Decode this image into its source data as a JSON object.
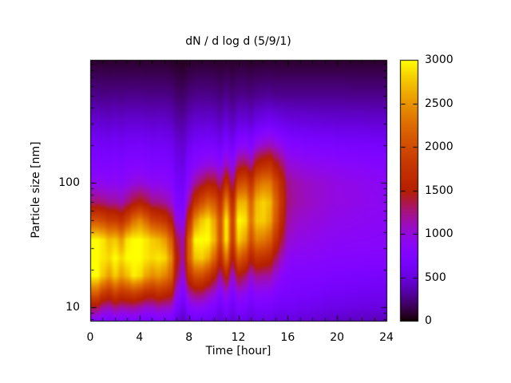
{
  "title": "dN / d log d (5/9/1)",
  "colors": {
    "background": "#ffffff",
    "text": "#000000",
    "border": "#000000"
  },
  "axes": {
    "x": {
      "label": "Time [hour]",
      "min": 0,
      "max": 24,
      "major_ticks": [
        0,
        4,
        8,
        12,
        16,
        20,
        24
      ],
      "minor_tick_step": 1
    },
    "y": {
      "label": "Particle size [nm]",
      "scale": "log",
      "min": 7.8,
      "max": 970,
      "major_ticks": [
        10,
        100
      ],
      "minor_ticks": [
        8,
        9,
        20,
        30,
        40,
        50,
        60,
        70,
        80,
        90,
        200,
        300,
        400,
        500,
        600,
        700,
        800,
        900
      ]
    },
    "z": {
      "min": 0,
      "max": 3000,
      "ticks": [
        0,
        500,
        1000,
        1500,
        2000,
        2500,
        3000
      ],
      "palette_name": "gnuplot pm3d (rgbformulae 7,5,15)",
      "palette_stops": [
        "#000000",
        "#5a00b4",
        "#8004ff",
        "#9c0db4",
        "#b42000",
        "#ca3e00",
        "#dd6c00",
        "#efab00",
        "#ffff00"
      ]
    }
  },
  "chart_data": {
    "type": "heatmap",
    "title": "dN / d log d (5/9/1)",
    "xlabel": "Time [hour]",
    "ylabel": "Particle size [nm]",
    "zlim": [
      0,
      3000
    ],
    "xlim": [
      0,
      24
    ],
    "ylim_nm": [
      7.8,
      970
    ],
    "colorbar_position": "right",
    "grid": false,
    "x_hours": [
      0,
      0.5,
      1,
      1.5,
      2,
      2.5,
      3,
      3.5,
      4,
      4.5,
      5,
      5.5,
      6,
      6.5,
      7,
      7.5,
      8,
      8.5,
      9,
      9.5,
      10,
      10.5,
      11,
      11.5,
      12,
      12.5,
      13,
      13.5,
      14,
      14.5,
      15,
      15.5,
      16,
      16.5,
      17,
      17.5,
      18,
      18.5,
      19,
      19.5,
      20,
      20.5,
      21,
      21.5,
      22,
      22.5,
      23,
      23.5,
      24
    ],
    "y_sizes_nm": [
      8,
      10,
      13,
      18,
      25,
      35,
      50,
      70,
      100,
      140,
      200,
      300,
      500,
      950
    ],
    "values": [
      [
        850,
        850,
        760,
        720,
        800,
        740,
        760,
        770,
        730,
        690,
        690,
        740,
        720,
        700,
        500,
        410,
        580,
        620,
        620,
        590,
        550,
        470,
        560,
        460,
        560,
        540,
        480,
        540,
        530,
        540,
        500,
        490,
        510,
        510,
        480,
        480,
        470,
        460,
        450,
        440,
        430,
        430,
        420,
        420,
        410,
        410,
        400,
        400,
        400
      ],
      [
        1360,
        1360,
        1170,
        1110,
        1240,
        1150,
        1180,
        1190,
        1130,
        1050,
        1050,
        1130,
        1080,
        1060,
        720,
        550,
        820,
        890,
        880,
        810,
        740,
        610,
        750,
        590,
        740,
        700,
        610,
        700,
        680,
        690,
        630,
        610,
        620,
        620,
        590,
        590,
        580,
        570,
        560,
        550,
        540,
        540,
        530,
        530,
        520,
        520,
        510,
        510,
        510
      ],
      [
        2140,
        2140,
        1830,
        1700,
        1900,
        1750,
        1810,
        1890,
        1800,
        1650,
        1610,
        1720,
        1640,
        1550,
        990,
        730,
        1170,
        1300,
        1290,
        1150,
        1020,
        810,
        1010,
        750,
        980,
        910,
        770,
        880,
        850,
        860,
        760,
        710,
        700,
        690,
        680,
        680,
        670,
        660,
        640,
        630,
        620,
        620,
        610,
        610,
        600,
        600,
        590,
        590,
        590
      ],
      [
        3000,
        3000,
        2760,
        2550,
        2780,
        2560,
        2720,
        2940,
        2860,
        2600,
        2460,
        2540,
        2410,
        2180,
        1330,
        990,
        1720,
        2020,
        2010,
        1810,
        1550,
        1180,
        1550,
        1050,
        1460,
        1320,
        1070,
        1230,
        1180,
        1170,
        990,
        860,
        790,
        770,
        760,
        760,
        750,
        750,
        740,
        730,
        720,
        720,
        710,
        700,
        700,
        690,
        680,
        680,
        680
      ],
      [
        3000,
        3000,
        2910,
        2850,
        3000,
        2850,
        3000,
        3000,
        3000,
        2910,
        2850,
        2910,
        2850,
        2480,
        1500,
        1180,
        2170,
        2750,
        2800,
        2620,
        2230,
        1670,
        2290,
        1490,
        2140,
        1950,
        1550,
        1780,
        1710,
        1640,
        1340,
        1090,
        910,
        870,
        860,
        860,
        840,
        840,
        830,
        820,
        810,
        810,
        810,
        810,
        800,
        800,
        800,
        800,
        800
      ],
      [
        3000,
        3000,
        2910,
        2720,
        2780,
        2560,
        2910,
        3000,
        3000,
        2910,
        2790,
        2710,
        2570,
        2190,
        1340,
        1140,
        2200,
        2990,
        3000,
        3000,
        2710,
        2060,
        2890,
        1870,
        2780,
        2590,
        2060,
        2390,
        2340,
        2190,
        1760,
        1380,
        1050,
        1000,
        960,
        950,
        930,
        920,
        900,
        890,
        880,
        870,
        870,
        860,
        860,
        860,
        850,
        850,
        850
      ],
      [
        2070,
        2070,
        1980,
        1850,
        1840,
        1710,
        1970,
        2290,
        2430,
        2220,
        1940,
        1870,
        1780,
        1520,
        990,
        900,
        1740,
        2490,
        2760,
        2910,
        2620,
        2060,
        2920,
        1930,
        2990,
        2900,
        2340,
        2780,
        2800,
        2630,
        2110,
        1640,
        1170,
        1090,
        1050,
        1030,
        1000,
        990,
        970,
        950,
        930,
        920,
        920,
        910,
        900,
        890,
        890,
        880,
        880
      ],
      [
        1280,
        1280,
        1260,
        1190,
        1190,
        1120,
        1270,
        1420,
        1510,
        1410,
        1250,
        1230,
        1180,
        1050,
        750,
        710,
        1240,
        1760,
        2010,
        2220,
        2100,
        1730,
        2420,
        1670,
        2660,
        2680,
        2210,
        2720,
        2820,
        2710,
        2210,
        1750,
        1250,
        1170,
        1130,
        1100,
        1070,
        1040,
        1020,
        1000,
        980,
        970,
        960,
        950,
        940,
        920,
        920,
        910,
        910
      ],
      [
        930,
        930,
        910,
        880,
        910,
        860,
        930,
        980,
        1010,
        970,
        900,
        910,
        880,
        830,
        650,
        620,
        920,
        1190,
        1340,
        1480,
        1460,
        1250,
        1700,
        1260,
        1970,
        2050,
        1750,
        2230,
        2360,
        2350,
        1980,
        1640,
        1220,
        1160,
        1120,
        1080,
        1060,
        1040,
        1020,
        1000,
        970,
        960,
        950,
        940,
        930,
        910,
        900,
        890,
        890
      ],
      [
        770,
        770,
        750,
        740,
        770,
        730,
        780,
        790,
        790,
        770,
        740,
        750,
        740,
        710,
        570,
        540,
        730,
        860,
        920,
        990,
        980,
        870,
        1120,
        890,
        1320,
        1380,
        1210,
        1580,
        1690,
        1740,
        1510,
        1310,
        1040,
        1000,
        970,
        940,
        920,
        910,
        900,
        890,
        870,
        860,
        840,
        840,
        830,
        820,
        810,
        800,
        800
      ],
      [
        650,
        650,
        630,
        620,
        650,
        620,
        650,
        650,
        660,
        640,
        620,
        630,
        620,
        600,
        490,
        460,
        590,
        670,
        690,
        710,
        690,
        620,
        750,
        620,
        840,
        880,
        780,
        1000,
        1070,
        1130,
        1020,
        930,
        810,
        780,
        770,
        750,
        740,
        730,
        720,
        720,
        700,
        700,
        690,
        690,
        680,
        680,
        670,
        670,
        670
      ],
      [
        480,
        480,
        470,
        460,
        480,
        460,
        480,
        480,
        480,
        470,
        460,
        470,
        460,
        440,
        360,
        340,
        430,
        480,
        480,
        490,
        470,
        420,
        500,
        420,
        520,
        530,
        480,
        580,
        600,
        640,
        600,
        570,
        540,
        530,
        520,
        520,
        510,
        510,
        500,
        500,
        490,
        490,
        490,
        490,
        490,
        480,
        480,
        480,
        480
      ],
      [
        280,
        280,
        270,
        270,
        280,
        270,
        280,
        280,
        280,
        270,
        270,
        270,
        270,
        260,
        210,
        200,
        250,
        280,
        280,
        280,
        270,
        240,
        280,
        240,
        280,
        280,
        260,
        290,
        300,
        310,
        290,
        290,
        290,
        290,
        290,
        290,
        290,
        290,
        290,
        290,
        290,
        290,
        280,
        280,
        280,
        280,
        280,
        280,
        280
      ],
      [
        90,
        90,
        90,
        90,
        90,
        90,
        90,
        90,
        90,
        90,
        90,
        90,
        90,
        80,
        70,
        60,
        80,
        90,
        90,
        90,
        90,
        80,
        90,
        80,
        90,
        90,
        80,
        90,
        90,
        90,
        90,
        90,
        90,
        90,
        90,
        90,
        90,
        90,
        90,
        90,
        90,
        90,
        90,
        90,
        90,
        90,
        90,
        90,
        90
      ]
    ]
  }
}
